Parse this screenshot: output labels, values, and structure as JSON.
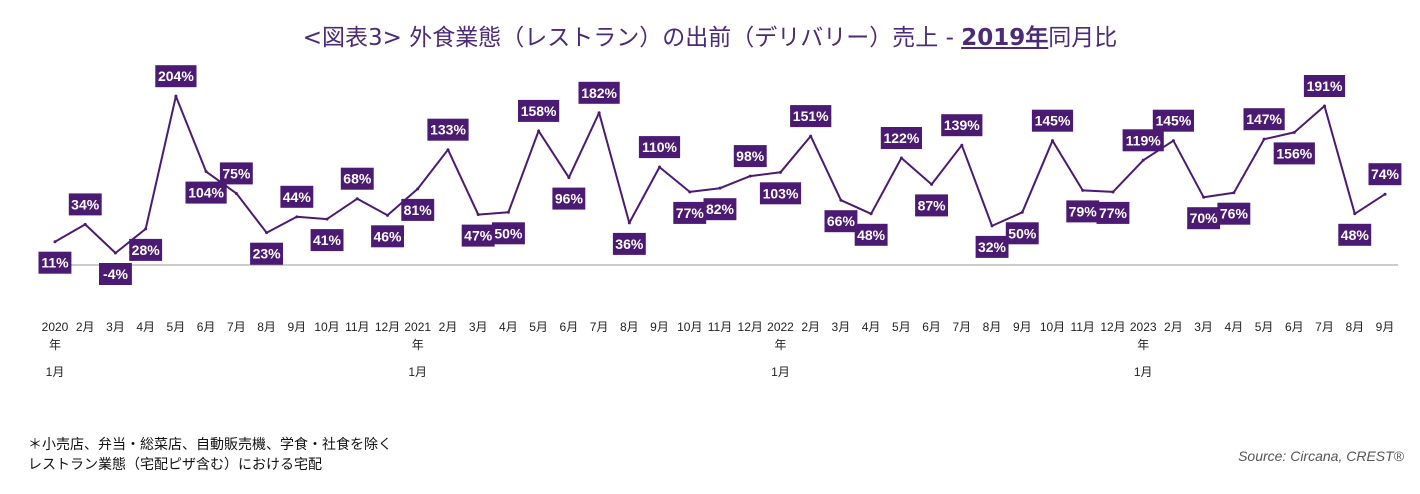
{
  "title": {
    "prefix": "<図表3> 外食業態（レストラン）の出前（デリバリー）売上 - ",
    "highlight": "2019年",
    "suffix": "同月比"
  },
  "footnote": {
    "line1": "＊小売店、弁当・総菜店、自動販売機、学食・社食を除く",
    "line2": "レストラン業態（宅配ピザ含む）における宅配"
  },
  "source": "Source: Circana, CREST®",
  "colors": {
    "line": "#4B1A72",
    "label_bg": "#4B1A72",
    "label_text": "#FFFFFF",
    "baseline": "#9A9A9A",
    "title": "#4B2A77"
  },
  "chart_data": {
    "type": "line",
    "title": "<図表3> 外食業態（レストラン）の出前（デリバリー）売上 - 2019年同月比",
    "xlabel": "",
    "ylabel": "",
    "ylim": [
      -4,
      204
    ],
    "grid": false,
    "categories": [
      "2020年1月",
      "2月",
      "3月",
      "4月",
      "5月",
      "6月",
      "7月",
      "8月",
      "9月",
      "10月",
      "11月",
      "12月",
      "2021年1月",
      "2月",
      "3月",
      "4月",
      "5月",
      "6月",
      "7月",
      "8月",
      "9月",
      "10月",
      "11月",
      "12月",
      "2022年1月",
      "2月",
      "3月",
      "4月",
      "5月",
      "6月",
      "7月",
      "8月",
      "9月",
      "10月",
      "11月",
      "12月",
      "2023年1月",
      "2月",
      "3月",
      "4月",
      "5月",
      "6月",
      "7月",
      "8月",
      "9月"
    ],
    "values": [
      11,
      34,
      -4,
      28,
      204,
      104,
      75,
      23,
      44,
      41,
      68,
      46,
      81,
      133,
      47,
      50,
      158,
      96,
      182,
      36,
      110,
      77,
      82,
      98,
      103,
      151,
      66,
      48,
      122,
      87,
      139,
      32,
      50,
      145,
      79,
      77,
      119,
      145,
      70,
      76,
      147,
      156,
      191,
      48,
      74
    ],
    "labels": [
      "11%",
      "34%",
      "-4%",
      "28%",
      "204%",
      "104%",
      "75%",
      "23%",
      "44%",
      "41%",
      "68%",
      "46%",
      "81%",
      "133%",
      "47%",
      "50%",
      "158%",
      "96%",
      "182%",
      "36%",
      "110%",
      "77%",
      "82%",
      "98%",
      "103%",
      "151%",
      "66%",
      "48%",
      "122%",
      "87%",
      "139%",
      "32%",
      "50%",
      "145%",
      "79%",
      "77%",
      "119%",
      "145%",
      "70%",
      "76%",
      "147%",
      "156%",
      "191%",
      "48%",
      "74%"
    ],
    "x_ticks": [
      {
        "main": "2020",
        "sub1": "年",
        "sub2": "1月"
      },
      {
        "main": "2月"
      },
      {
        "main": "3月"
      },
      {
        "main": "4月"
      },
      {
        "main": "5月"
      },
      {
        "main": "6月"
      },
      {
        "main": "7月"
      },
      {
        "main": "8月"
      },
      {
        "main": "9月"
      },
      {
        "main": "10月"
      },
      {
        "main": "11月"
      },
      {
        "main": "12月"
      },
      {
        "main": "2021",
        "sub1": "年",
        "sub2": "1月"
      },
      {
        "main": "2月"
      },
      {
        "main": "3月"
      },
      {
        "main": "4月"
      },
      {
        "main": "5月"
      },
      {
        "main": "6月"
      },
      {
        "main": "7月"
      },
      {
        "main": "8月"
      },
      {
        "main": "9月"
      },
      {
        "main": "10月"
      },
      {
        "main": "11月"
      },
      {
        "main": "12月"
      },
      {
        "main": "2022",
        "sub1": "年",
        "sub2": "1月"
      },
      {
        "main": "2月"
      },
      {
        "main": "3月"
      },
      {
        "main": "4月"
      },
      {
        "main": "5月"
      },
      {
        "main": "6月"
      },
      {
        "main": "7月"
      },
      {
        "main": "8月"
      },
      {
        "main": "9月"
      },
      {
        "main": "10月"
      },
      {
        "main": "11月"
      },
      {
        "main": "12月"
      },
      {
        "main": "2023",
        "sub1": "年",
        "sub2": "1月"
      },
      {
        "main": "2月"
      },
      {
        "main": "3月"
      },
      {
        "main": "4月"
      },
      {
        "main": "5月"
      },
      {
        "main": "6月"
      },
      {
        "main": "7月"
      },
      {
        "main": "8月"
      },
      {
        "main": "9月"
      }
    ]
  }
}
